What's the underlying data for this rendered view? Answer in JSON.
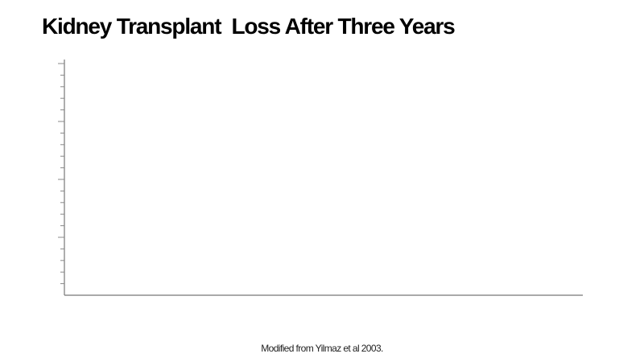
{
  "chart_data": {
    "type": "bar",
    "title": "Kidney Transplant  Loss After Three Years",
    "source": "Modified from Yilmaz et al 2003."
  }
}
